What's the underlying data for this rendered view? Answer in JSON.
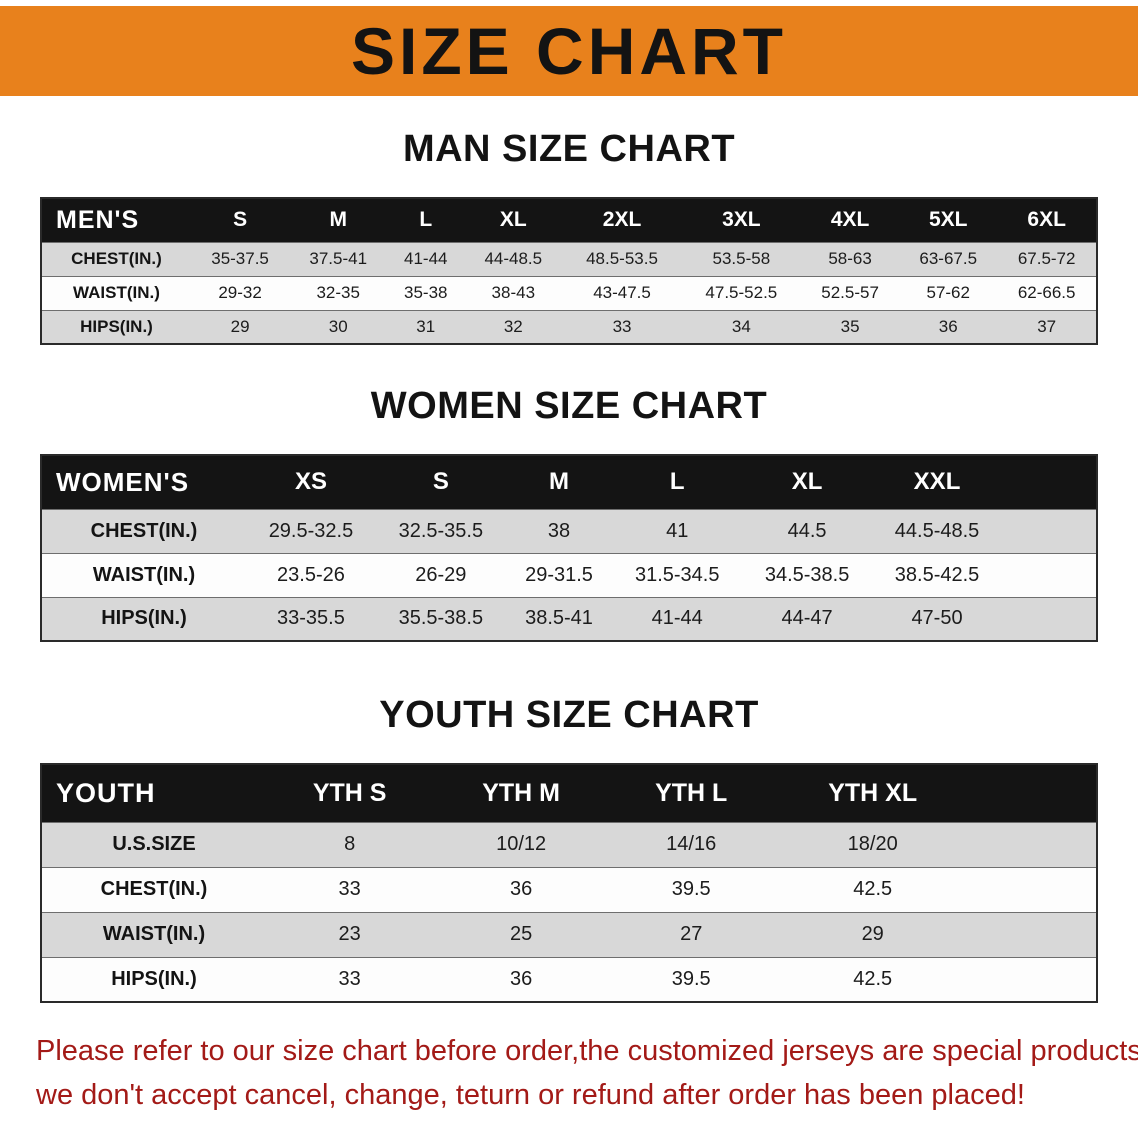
{
  "banner": {
    "title": "SIZE CHART"
  },
  "sections": [
    {
      "heading": "MAN SIZE CHART",
      "table": {
        "header": [
          "MEN'S",
          "S",
          "M",
          "L",
          "XL",
          "2XL",
          "3XL",
          "4XL",
          "5XL",
          "6XL"
        ],
        "rows": [
          [
            "CHEST(IN.)",
            "35-37.5",
            "37.5-41",
            "41-44",
            "44-48.5",
            "48.5-53.5",
            "53.5-58",
            "58-63",
            "63-67.5",
            "67.5-72"
          ],
          [
            "WAIST(IN.)",
            "29-32",
            "32-35",
            "35-38",
            "38-43",
            "43-47.5",
            "47.5-52.5",
            "52.5-57",
            "57-62",
            "62-66.5"
          ],
          [
            "HIPS(IN.)",
            "29",
            "30",
            "31",
            "32",
            "33",
            "34",
            "35",
            "36",
            "37"
          ]
        ]
      }
    },
    {
      "heading": "WOMEN SIZE CHART",
      "table": {
        "header": [
          "WOMEN'S",
          "XS",
          "S",
          "M",
          "L",
          "XL",
          "XXL"
        ],
        "rows": [
          [
            "CHEST(IN.)",
            "29.5-32.5",
            "32.5-35.5",
            "38",
            "41",
            "44.5",
            "44.5-48.5"
          ],
          [
            "WAIST(IN.)",
            "23.5-26",
            "26-29",
            "29-31.5",
            "31.5-34.5",
            "34.5-38.5",
            "38.5-42.5"
          ],
          [
            "HIPS(IN.)",
            "33-35.5",
            "35.5-38.5",
            "38.5-41",
            "41-44",
            "44-47",
            "47-50"
          ]
        ]
      }
    },
    {
      "heading": "YOUTH SIZE CHART",
      "table": {
        "header": [
          "YOUTH",
          "YTH S",
          "YTH M",
          "YTH L",
          "YTH XL"
        ],
        "rows": [
          [
            "U.S.SIZE",
            "8",
            "10/12",
            "14/16",
            "18/20"
          ],
          [
            "CHEST(IN.)",
            "33",
            "36",
            "39.5",
            "42.5"
          ],
          [
            "WAIST(IN.)",
            "23",
            "25",
            "27",
            "29"
          ],
          [
            "HIPS(IN.)",
            "33",
            "36",
            "39.5",
            "42.5"
          ]
        ]
      }
    }
  ],
  "footer": {
    "lines": [
      "Please refer to our size chart before order,the customized jerseys are special products,",
      "we don't accept cancel, change, teturn or refund after order has been placed!"
    ]
  },
  "colors": {
    "banner_orange": "#E8811C",
    "header_black": "#141414",
    "row_gray": "#D8D8D8",
    "row_white": "#FDFDFD",
    "notice_red": "#A31A17"
  }
}
